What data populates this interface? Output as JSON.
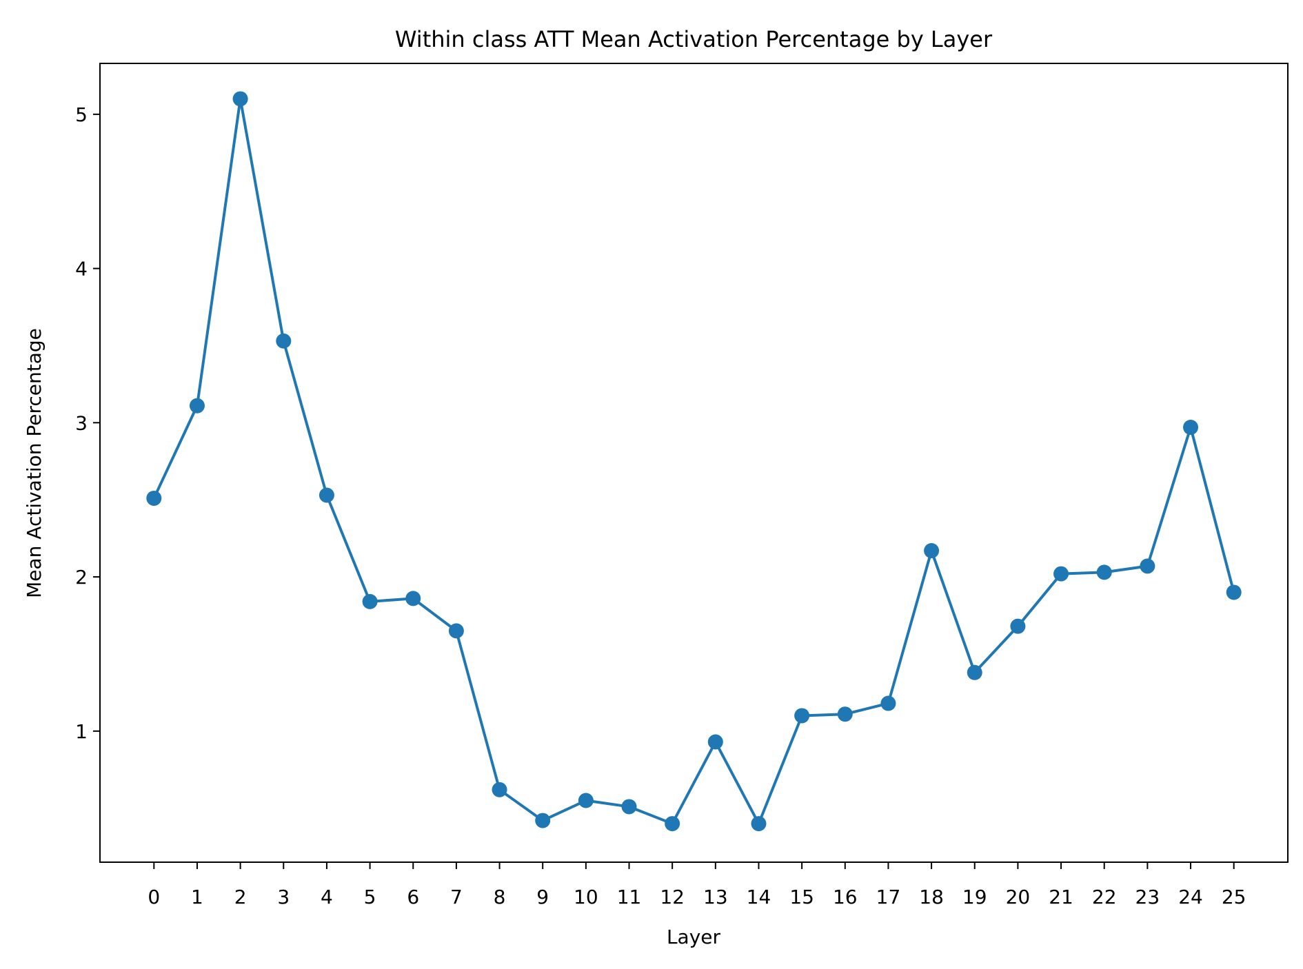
{
  "chart_data": {
    "type": "line",
    "title": "Within class ATT Mean Activation Percentage by Layer",
    "xlabel": "Layer",
    "ylabel": "Mean Activation Percentage",
    "x": [
      0,
      1,
      2,
      3,
      4,
      5,
      6,
      7,
      8,
      9,
      10,
      11,
      12,
      13,
      14,
      15,
      16,
      17,
      18,
      19,
      20,
      21,
      22,
      23,
      24,
      25
    ],
    "x_tick_labels": [
      "0",
      "1",
      "2",
      "3",
      "4",
      "5",
      "6",
      "7",
      "8",
      "9",
      "10",
      "11",
      "12",
      "13",
      "14",
      "15",
      "16",
      "17",
      "18",
      "19",
      "20",
      "21",
      "22",
      "23",
      "24",
      "25"
    ],
    "y_ticks": [
      1,
      2,
      3,
      4,
      5
    ],
    "y_tick_labels": [
      "1",
      "2",
      "3",
      "4",
      "5"
    ],
    "xlim": [
      -1.25,
      26.25
    ],
    "ylim": [
      0.15,
      5.33
    ],
    "grid": false,
    "legend": "none",
    "series": [
      {
        "color": "#1f77b4",
        "marker": "circle",
        "values": [
          2.51,
          3.11,
          5.1,
          3.53,
          2.53,
          1.84,
          1.86,
          1.65,
          0.62,
          0.42,
          0.55,
          0.51,
          0.4,
          0.93,
          0.4,
          1.1,
          1.11,
          1.18,
          2.17,
          1.38,
          1.68,
          2.02,
          2.03,
          2.07,
          2.97,
          1.9
        ]
      }
    ]
  }
}
